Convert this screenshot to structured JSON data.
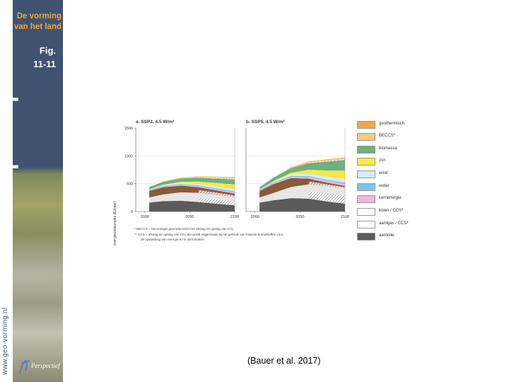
{
  "sidebar": {
    "book_title_line1": "De vorming",
    "book_title_line2": "van het land",
    "fig_line1": "Fig.",
    "fig_line2": "11-11",
    "url": "www.geo-vorming.nl",
    "logo_text": "Perspectief"
  },
  "chart_data": [
    {
      "type": "area",
      "title": "a. SSP2, 4.5 W/m²",
      "ylabel": "energieconsumptie (EJ/jaar)",
      "ylim": [
        0,
        1500
      ],
      "yticks": [
        "0",
        "500",
        "1000",
        "1500"
      ],
      "xticks": [
        "2000",
        "2050",
        "2100"
      ],
      "x": [
        2005,
        2020,
        2040,
        2060,
        2080,
        2100
      ],
      "series": [
        {
          "name": "aardolie",
          "values": [
            160,
            185,
            195,
            170,
            140,
            110
          ]
        },
        {
          "name": "aardgas / CCS*",
          "values": [
            90,
            120,
            150,
            165,
            160,
            150
          ]
        },
        {
          "name": "kolen / CCS*",
          "values": [
            120,
            130,
            120,
            100,
            80,
            60
          ]
        },
        {
          "name": "kernenergie",
          "values": [
            10,
            12,
            14,
            16,
            18,
            20
          ]
        },
        {
          "name": "water",
          "values": [
            12,
            14,
            16,
            18,
            20,
            22
          ]
        },
        {
          "name": "wind",
          "values": [
            5,
            12,
            20,
            28,
            35,
            42
          ]
        },
        {
          "name": "zon",
          "values": [
            2,
            8,
            20,
            40,
            60,
            80
          ]
        },
        {
          "name": "biomassa",
          "values": [
            40,
            50,
            60,
            70,
            80,
            90
          ]
        },
        {
          "name": "BECCS*",
          "values": [
            0,
            5,
            12,
            20,
            28,
            35
          ]
        },
        {
          "name": "geothermisch",
          "values": [
            0,
            2,
            3,
            5,
            6,
            8
          ]
        }
      ]
    },
    {
      "type": "area",
      "title": "b. SSP5, 4.5 W/m²",
      "ylim": [
        0,
        1500
      ],
      "xticks": [
        "2000",
        "2050",
        "2100"
      ],
      "x": [
        2005,
        2020,
        2040,
        2060,
        2080,
        2100
      ],
      "series": [
        {
          "name": "aardolie",
          "values": [
            160,
            200,
            240,
            230,
            180,
            140
          ]
        },
        {
          "name": "aardgas / CCS*",
          "values": [
            90,
            130,
            200,
            260,
            280,
            280
          ]
        },
        {
          "name": "kolen / CCS*",
          "values": [
            120,
            160,
            160,
            100,
            60,
            40
          ]
        },
        {
          "name": "kernenergie",
          "values": [
            10,
            15,
            20,
            25,
            30,
            35
          ]
        },
        {
          "name": "water",
          "values": [
            12,
            15,
            18,
            20,
            22,
            25
          ]
        },
        {
          "name": "wind",
          "values": [
            5,
            12,
            30,
            45,
            55,
            65
          ]
        },
        {
          "name": "zon",
          "values": [
            2,
            8,
            30,
            70,
            110,
            150
          ]
        },
        {
          "name": "biomassa",
          "values": [
            40,
            60,
            80,
            120,
            160,
            190
          ]
        },
        {
          "name": "BECCS*",
          "values": [
            0,
            5,
            15,
            25,
            30,
            35
          ]
        },
        {
          "name": "geothermisch",
          "values": [
            0,
            3,
            5,
            8,
            10,
            12
          ]
        }
      ]
    }
  ],
  "legend": [
    {
      "label": "geothermisch",
      "color": "#f2a54a"
    },
    {
      "label": "BECCS*",
      "color": "#f4c98a"
    },
    {
      "label": "biomassa",
      "color": "#6fb07f"
    },
    {
      "label": "zon",
      "color": "#f7e84a"
    },
    {
      "label": "wind",
      "color": "#d7ecf4"
    },
    {
      "label": "water",
      "color": "#7cc3e8"
    },
    {
      "label": "kernenergie",
      "color": "#f3b6d3"
    },
    {
      "label": "kolen / CCS*",
      "color": "#8a5a3c"
    },
    {
      "label": "aardgas / CCS*",
      "color": "#e6e6e6"
    },
    {
      "label": "aardolie",
      "color": "#5b5b5b"
    }
  ],
  "footnotes": [
    "* BECCS = bio-energie geproduceerd met afvang en opslag van CO₂",
    "** CCS = afvang en opslag van CO₂ die wordt vrijgemaakt bij het gebruik van fossiele brandstoffen voor",
    "de opwekking van energie en in de industrie."
  ],
  "source": "(Bauer et al. 2017)"
}
